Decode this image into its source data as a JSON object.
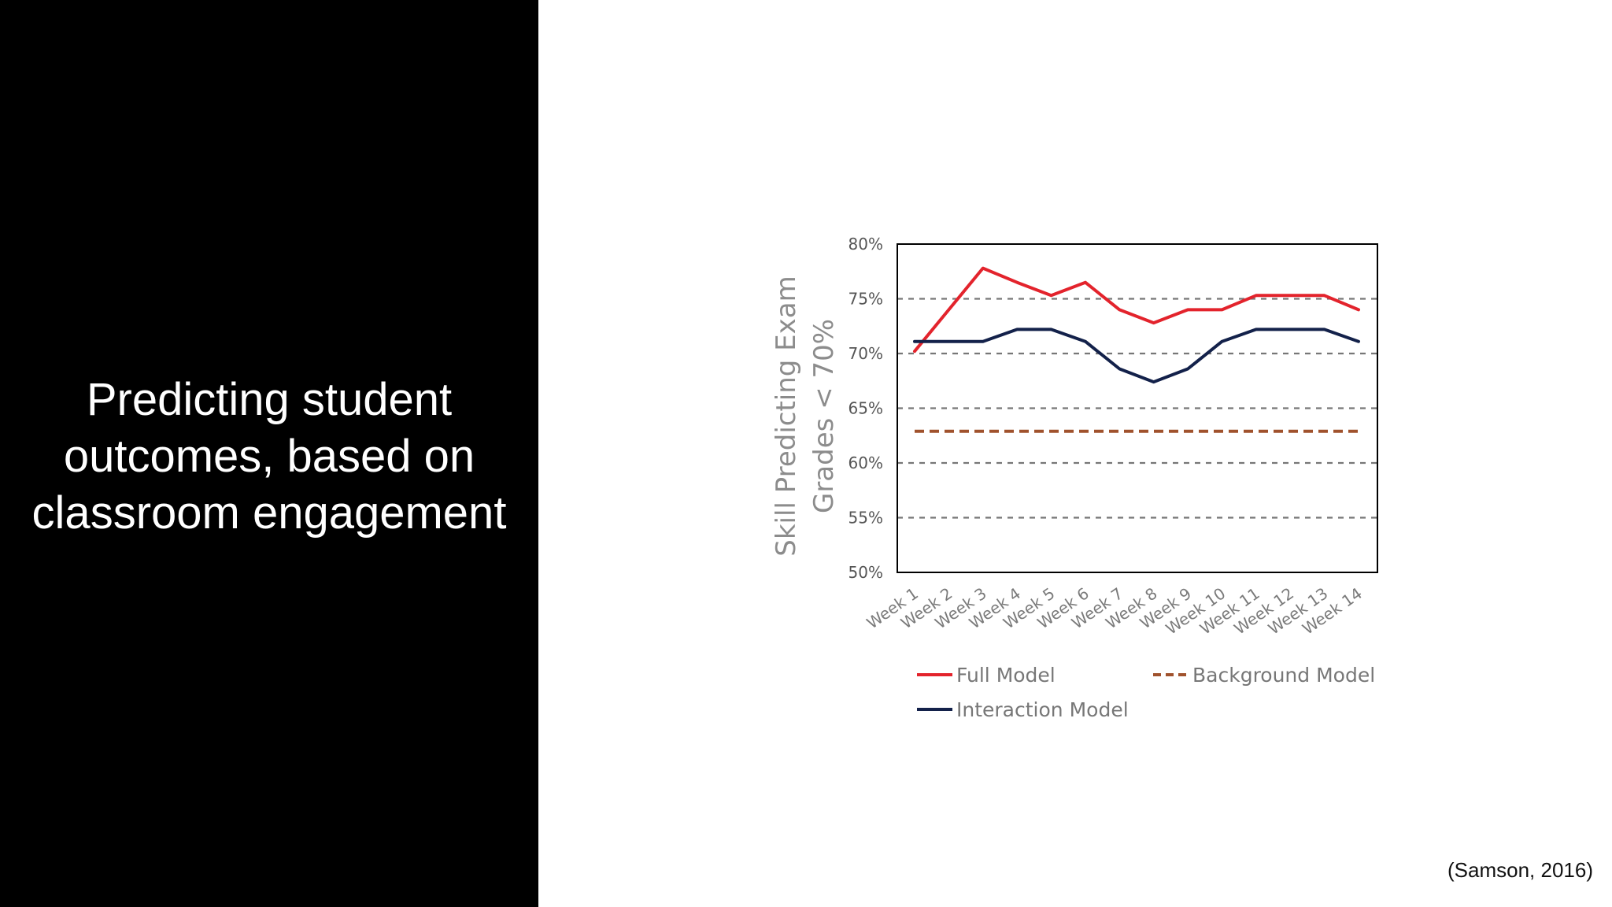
{
  "slide": {
    "title_lines": [
      "Predicting student",
      "outcomes, based on",
      "classroom engagement"
    ],
    "citation": "(Samson, 2016)"
  },
  "chart_data": {
    "type": "line",
    "ylabel_lines": [
      "Skill Predicting Exam",
      "Grades < 70%"
    ],
    "xlabel": "",
    "categories": [
      "Week 1",
      "Week 2",
      "Week 3",
      "Week 4",
      "Week 5",
      "Week 6",
      "Week 7",
      "Week 8",
      "Week 9",
      "Week 10",
      "Week 11",
      "Week 12",
      "Week 13",
      "Week 14"
    ],
    "ylim": [
      50,
      80
    ],
    "yticks": [
      50,
      55,
      60,
      65,
      70,
      75,
      80
    ],
    "ytick_labels": [
      "50%",
      "55%",
      "60%",
      "65%",
      "70%",
      "75%",
      "80%"
    ],
    "grid": "dashed horizontal",
    "legend_position": "bottom",
    "series": [
      {
        "name": "Full Model",
        "color": "#e3232c",
        "style": "solid",
        "values": [
          70.2,
          74.0,
          77.8,
          76.5,
          75.3,
          76.5,
          74.0,
          72.8,
          74.0,
          74.0,
          75.3,
          75.3,
          75.3,
          74.0
        ]
      },
      {
        "name": "Background Model",
        "color": "#a0522d",
        "style": "dashed",
        "values": [
          62.9,
          62.9,
          62.9,
          62.9,
          62.9,
          62.9,
          62.9,
          62.9,
          62.9,
          62.9,
          62.9,
          62.9,
          62.9,
          62.9
        ]
      },
      {
        "name": "Interaction Model",
        "color": "#13214a",
        "style": "solid",
        "values": [
          71.1,
          71.1,
          71.1,
          72.2,
          72.2,
          71.1,
          68.6,
          67.4,
          68.6,
          71.1,
          72.2,
          72.2,
          72.2,
          71.1
        ]
      }
    ]
  }
}
